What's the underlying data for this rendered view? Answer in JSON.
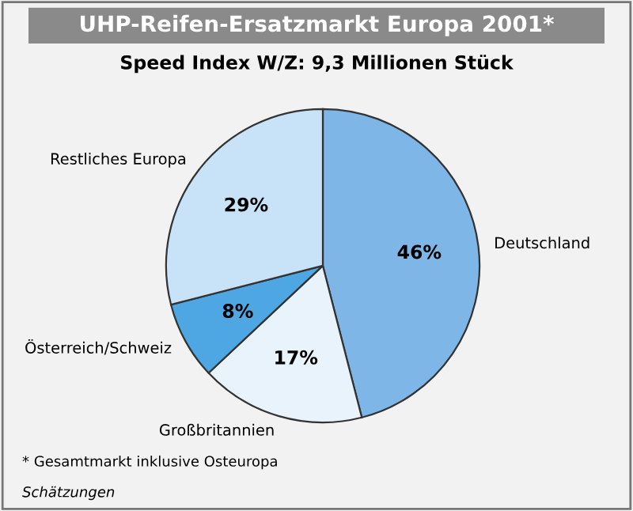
{
  "chart_data": {
    "type": "pie",
    "title": "UHP-Reifen-Ersatzmarkt Europa 2001*",
    "subtitle": "Speed Index W/Z: 9,3 Millionen Stück",
    "categories": [
      "Deutschland",
      "Großbritannien",
      "Österreich/Schweiz",
      "Restliches Europa"
    ],
    "values": [
      46,
      17,
      8,
      29
    ],
    "value_labels": [
      "46%",
      "17%",
      "8%",
      "29%"
    ],
    "colors": [
      "#7fb6e8",
      "#e9f3fc",
      "#4ea6e2",
      "#c8e2f7"
    ],
    "annotations": [
      "* Gesamtmarkt inklusive Osteuropa",
      "Schätzungen"
    ]
  }
}
